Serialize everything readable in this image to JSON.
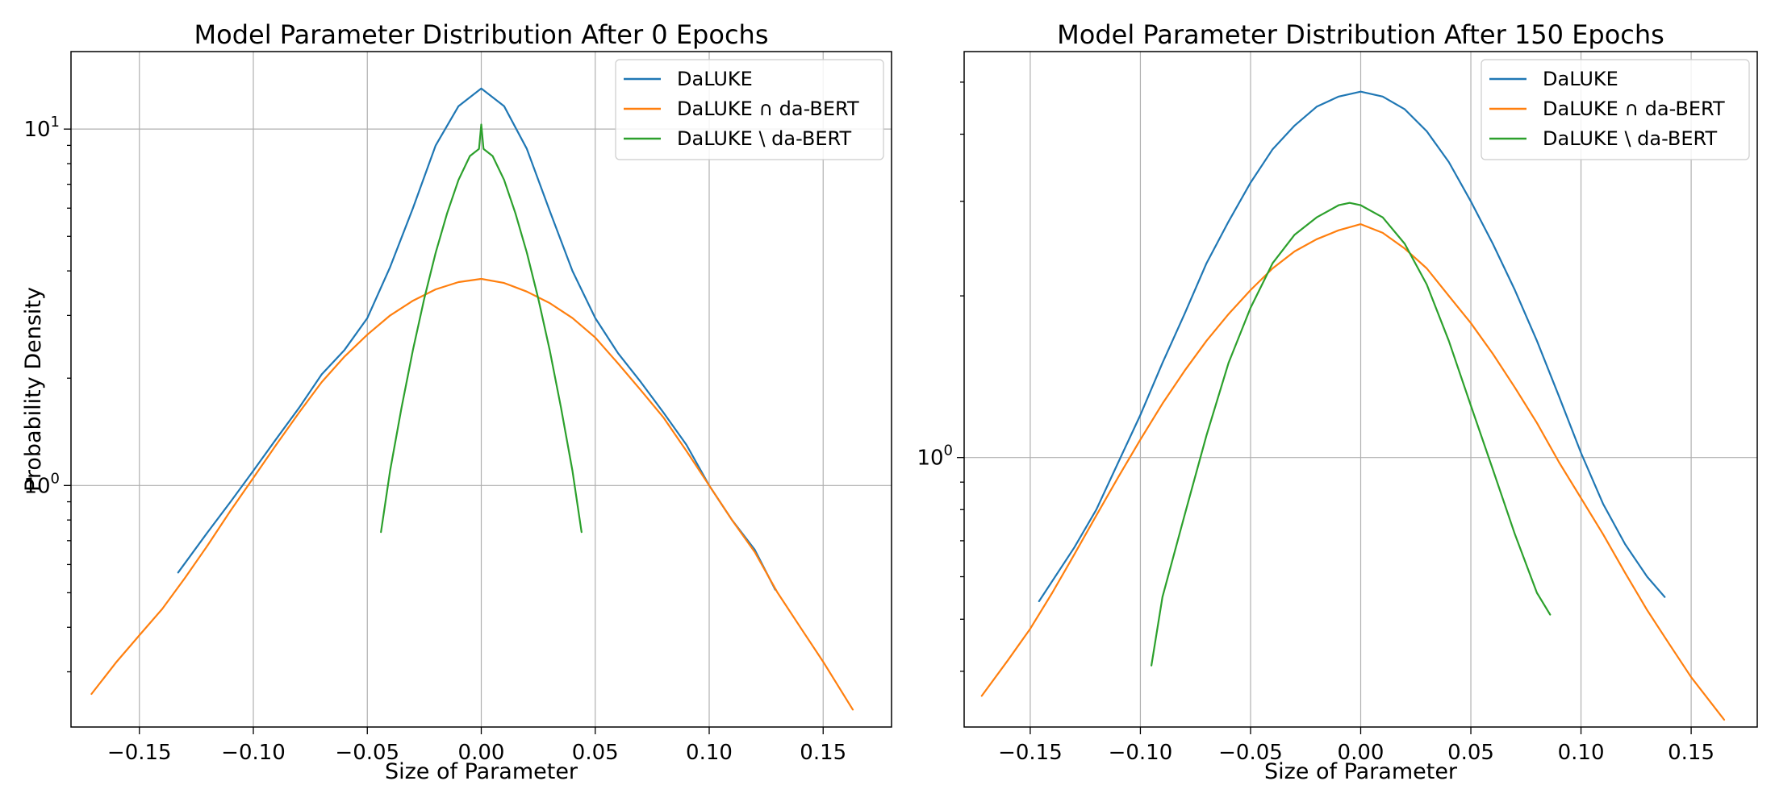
{
  "chart_data": [
    {
      "type": "line",
      "title": "Model Parameter Distribution After 0 Epochs",
      "xlabel": "Size of Parameter",
      "ylabel": "Probability Density",
      "xlim": [
        -0.18,
        0.18
      ],
      "ylim": [
        0.21,
        16.5
      ],
      "yscale": "log",
      "grid": true,
      "legend_position": "top-right",
      "x_ticks": [
        -0.15,
        -0.1,
        -0.05,
        0.0,
        0.05,
        0.1,
        0.15
      ],
      "x_tick_labels": [
        "−0.15",
        "−0.10",
        "−0.05",
        "0.00",
        "0.05",
        "0.10",
        "0.15"
      ],
      "y_ticks": [
        1,
        10
      ],
      "y_tick_labels": [
        {
          "base": "10",
          "exp": "0"
        },
        {
          "base": "10",
          "exp": "1"
        }
      ],
      "series": [
        {
          "name": "DaLUKE",
          "color": "#1f77b4",
          "x": [
            -0.133,
            -0.12,
            -0.11,
            -0.1,
            -0.09,
            -0.08,
            -0.07,
            -0.06,
            -0.05,
            -0.04,
            -0.03,
            -0.02,
            -0.01,
            0.0,
            0.01,
            0.02,
            0.03,
            0.04,
            0.05,
            0.06,
            0.07,
            0.08,
            0.09,
            0.1,
            0.11,
            0.12,
            0.129
          ],
          "y": [
            0.57,
            0.74,
            0.9,
            1.1,
            1.35,
            1.65,
            2.05,
            2.4,
            2.95,
            4.1,
            6.0,
            9.0,
            11.6,
            13.0,
            11.6,
            8.8,
            5.9,
            4.0,
            2.95,
            2.35,
            1.95,
            1.6,
            1.3,
            1.0,
            0.8,
            0.66,
            0.51
          ]
        },
        {
          "name": "DaLUKE ∩ da-BERT",
          "color": "#ff7f0e",
          "x": [
            -0.171,
            -0.16,
            -0.15,
            -0.14,
            -0.13,
            -0.12,
            -0.11,
            -0.1,
            -0.09,
            -0.08,
            -0.07,
            -0.06,
            -0.05,
            -0.04,
            -0.03,
            -0.02,
            -0.01,
            0.0,
            0.01,
            0.02,
            0.03,
            0.04,
            0.05,
            0.06,
            0.07,
            0.08,
            0.09,
            0.1,
            0.11,
            0.12,
            0.13,
            0.14,
            0.15,
            0.163
          ],
          "y": [
            0.26,
            0.32,
            0.38,
            0.45,
            0.55,
            0.68,
            0.85,
            1.05,
            1.3,
            1.6,
            1.95,
            2.3,
            2.65,
            3.0,
            3.3,
            3.55,
            3.72,
            3.8,
            3.7,
            3.5,
            3.25,
            2.95,
            2.6,
            2.2,
            1.85,
            1.55,
            1.25,
            1.0,
            0.8,
            0.65,
            0.5,
            0.4,
            0.32,
            0.235
          ]
        },
        {
          "name": "DaLUKE \\ da-BERT",
          "color": "#2ca02c",
          "x": [
            -0.044,
            -0.04,
            -0.035,
            -0.03,
            -0.025,
            -0.02,
            -0.015,
            -0.01,
            -0.005,
            -0.001,
            0.0,
            0.001,
            0.005,
            0.01,
            0.015,
            0.02,
            0.025,
            0.03,
            0.035,
            0.04,
            0.044
          ],
          "y": [
            0.74,
            1.1,
            1.65,
            2.4,
            3.35,
            4.5,
            5.8,
            7.2,
            8.4,
            8.8,
            10.3,
            8.8,
            8.4,
            7.2,
            5.8,
            4.5,
            3.35,
            2.4,
            1.65,
            1.1,
            0.74
          ]
        }
      ]
    },
    {
      "type": "line",
      "title": "Model Parameter Distribution After 150 Epochs",
      "xlabel": "Size of Parameter",
      "ylabel": "",
      "xlim": [
        -0.18,
        0.18
      ],
      "ylim": [
        0.315,
        5.7
      ],
      "yscale": "log",
      "grid": true,
      "legend_position": "top-right",
      "x_ticks": [
        -0.15,
        -0.1,
        -0.05,
        0.0,
        0.05,
        0.1,
        0.15
      ],
      "x_tick_labels": [
        "−0.15",
        "−0.10",
        "−0.05",
        "0.00",
        "0.05",
        "0.10",
        "0.15"
      ],
      "y_ticks": [
        1
      ],
      "y_tick_labels": [
        {
          "base": "10",
          "exp": "0"
        }
      ],
      "series": [
        {
          "name": "DaLUKE",
          "color": "#1f77b4",
          "x": [
            -0.146,
            -0.13,
            -0.12,
            -0.11,
            -0.1,
            -0.09,
            -0.08,
            -0.07,
            -0.06,
            -0.05,
            -0.04,
            -0.03,
            -0.02,
            -0.01,
            0.0,
            0.01,
            0.02,
            0.03,
            0.04,
            0.05,
            0.06,
            0.07,
            0.08,
            0.09,
            0.1,
            0.11,
            0.12,
            0.13,
            0.138
          ],
          "y": [
            0.54,
            0.68,
            0.8,
            0.98,
            1.2,
            1.5,
            1.85,
            2.3,
            2.75,
            3.25,
            3.75,
            4.15,
            4.5,
            4.7,
            4.8,
            4.7,
            4.45,
            4.05,
            3.55,
            3.0,
            2.5,
            2.05,
            1.65,
            1.3,
            1.02,
            0.82,
            0.69,
            0.6,
            0.55
          ]
        },
        {
          "name": "DaLUKE ∩ da-BERT",
          "color": "#ff7f0e",
          "x": [
            -0.172,
            -0.16,
            -0.15,
            -0.14,
            -0.13,
            -0.12,
            -0.11,
            -0.1,
            -0.09,
            -0.08,
            -0.07,
            -0.06,
            -0.05,
            -0.04,
            -0.03,
            -0.02,
            -0.01,
            0.0,
            0.01,
            0.02,
            0.03,
            0.04,
            0.05,
            0.06,
            0.07,
            0.08,
            0.09,
            0.1,
            0.11,
            0.12,
            0.13,
            0.14,
            0.15,
            0.165
          ],
          "y": [
            0.36,
            0.42,
            0.48,
            0.56,
            0.66,
            0.78,
            0.92,
            1.08,
            1.26,
            1.45,
            1.65,
            1.85,
            2.05,
            2.25,
            2.42,
            2.55,
            2.65,
            2.72,
            2.62,
            2.45,
            2.25,
            2.0,
            1.78,
            1.56,
            1.35,
            1.16,
            0.98,
            0.84,
            0.72,
            0.61,
            0.52,
            0.45,
            0.39,
            0.325
          ]
        },
        {
          "name": "DaLUKE \\ da-BERT",
          "color": "#2ca02c",
          "x": [
            -0.095,
            -0.09,
            -0.08,
            -0.07,
            -0.06,
            -0.05,
            -0.04,
            -0.03,
            -0.02,
            -0.01,
            -0.005,
            0.0,
            0.01,
            0.02,
            0.03,
            0.04,
            0.05,
            0.06,
            0.07,
            0.08,
            0.086
          ],
          "y": [
            0.41,
            0.55,
            0.78,
            1.1,
            1.5,
            1.9,
            2.3,
            2.6,
            2.8,
            2.95,
            2.98,
            2.95,
            2.8,
            2.5,
            2.1,
            1.65,
            1.25,
            0.95,
            0.72,
            0.56,
            0.51
          ]
        }
      ]
    }
  ]
}
